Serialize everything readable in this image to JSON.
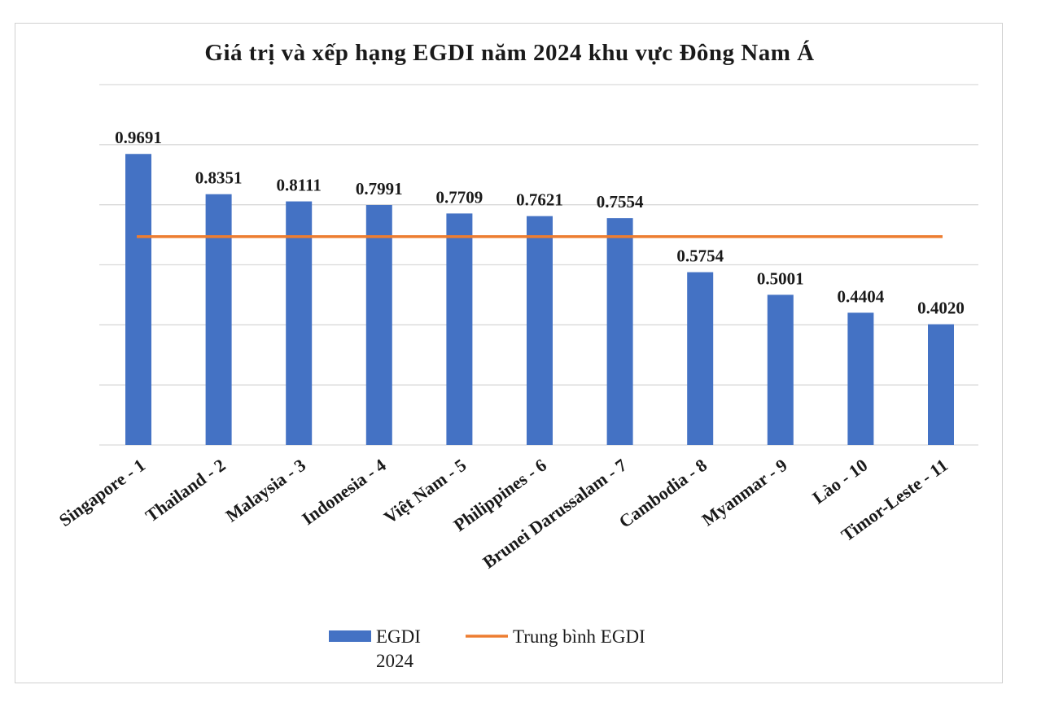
{
  "chart_data": {
    "type": "bar",
    "title": "Giá trị và xếp hạng EGDI năm 2024 khu vực Đông Nam Á",
    "categories": [
      "Singapore - 1",
      "Thailand - 2",
      "Malaysia - 3",
      "Indonesia - 4",
      "Việt Nam - 5",
      "Philippines - 6",
      "Brunei Darussalam - 7",
      "Cambodia - 8",
      "Myanmar - 9",
      "Lào - 10",
      "Timor-Leste - 11"
    ],
    "series": [
      {
        "name": "EGDI 2024",
        "type": "bar",
        "color": "#4472C4",
        "values": [
          0.9691,
          0.8351,
          0.8111,
          0.7991,
          0.7709,
          0.7621,
          0.7554,
          0.5754,
          0.5001,
          0.4404,
          0.402
        ],
        "labels": [
          "0.9691",
          "0.8351",
          "0.8111",
          "0.7991",
          "0.7709",
          "0.7621",
          "0.7554",
          "0.5754",
          "0.5001",
          "0.4404",
          "0.4020"
        ]
      },
      {
        "name": "Trung bình EGDI",
        "type": "line",
        "color": "#ED7D31",
        "value": 0.6937
      }
    ],
    "ylim": [
      0,
      1.2
    ],
    "y_gridlines": [
      0,
      0.2,
      0.4,
      0.6,
      0.8,
      1.0,
      1.2
    ],
    "grid": true,
    "legend": "bottom",
    "legend_entries": [
      {
        "lines": [
          "EGDI",
          "2024"
        ],
        "marker": "bar",
        "color": "#4472C4"
      },
      {
        "lines": [
          "Trung bình EGDI"
        ],
        "marker": "line",
        "color": "#ED7D31"
      }
    ]
  }
}
